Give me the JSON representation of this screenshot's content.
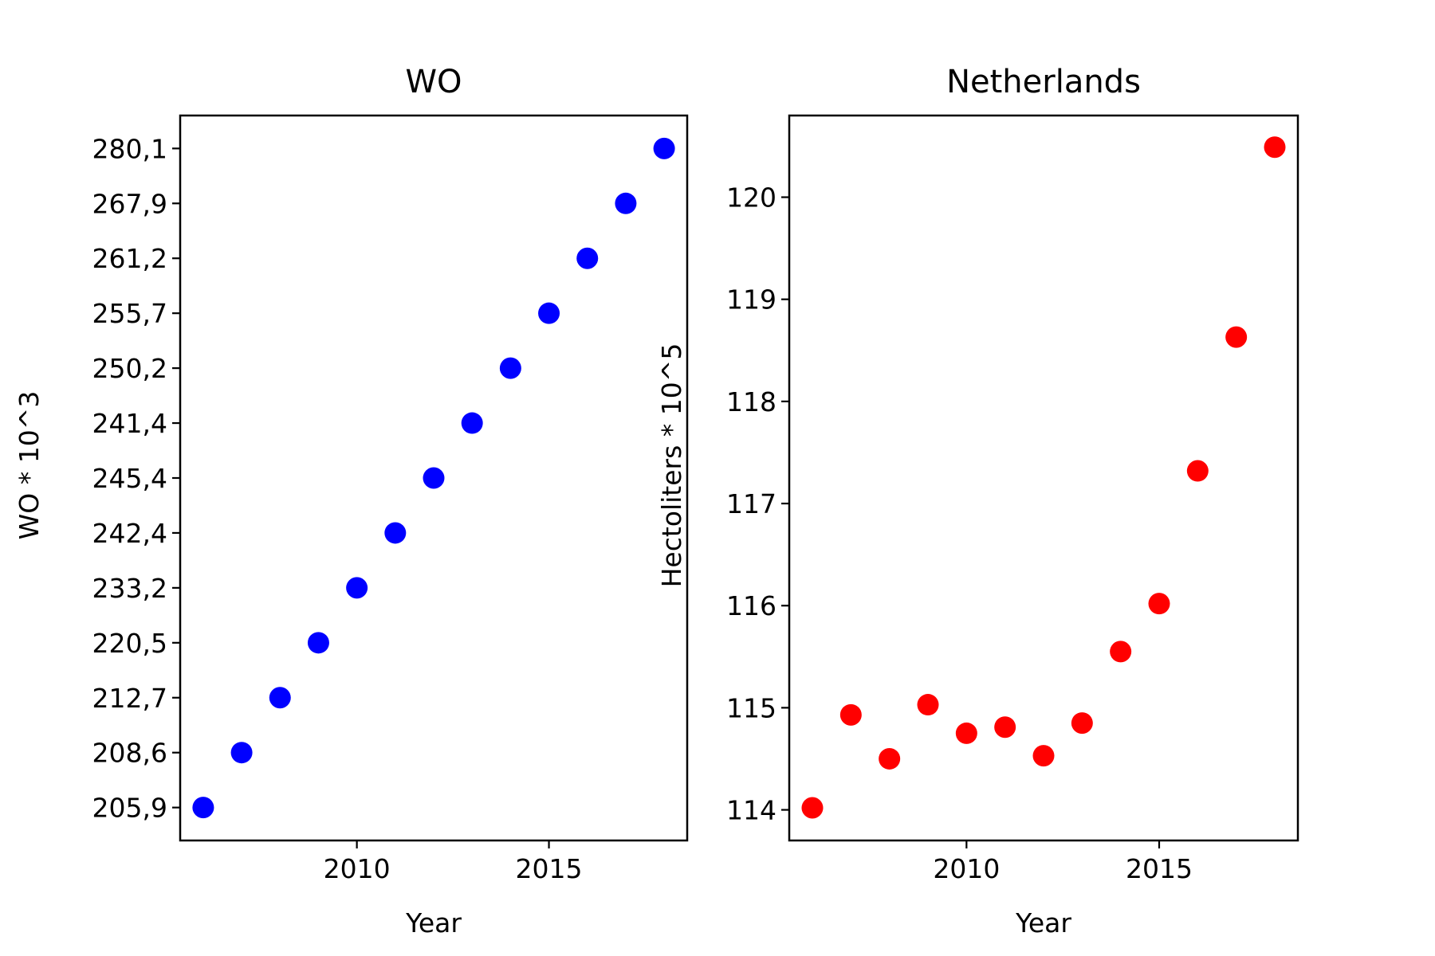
{
  "chart_data": [
    {
      "type": "scatter",
      "title": "WO",
      "xlabel": "Year",
      "ylabel": "WO * 10^3",
      "x_ticks": [
        2010,
        2015
      ],
      "xlim": [
        2005.4,
        2018.6
      ],
      "y_axis": "categorical",
      "y_categories": [
        "205,9",
        "208,6",
        "212,7",
        "220,5",
        "233,2",
        "242,4",
        "245,4",
        "241,4",
        "250,2",
        "255,7",
        "261,2",
        "267,9",
        "280,1"
      ],
      "grid": false,
      "marker_color": "#0000ff",
      "series": [
        {
          "x": [
            2006,
            2007,
            2008,
            2009,
            2010,
            2011,
            2012,
            2013,
            2014,
            2015,
            2016,
            2017,
            2018
          ],
          "y": [
            "205,9",
            "208,6",
            "212,7",
            "220,5",
            "233,2",
            "242,4",
            "245,4",
            "241,4",
            "250,2",
            "255,7",
            "261,2",
            "267,9",
            "280,1"
          ]
        }
      ]
    },
    {
      "type": "scatter",
      "title": "Netherlands",
      "xlabel": "Year",
      "ylabel": "Hectoliters * 10^5",
      "x_ticks": [
        2010,
        2015
      ],
      "xlim": [
        2005.4,
        2018.6
      ],
      "y_ticks": [
        114,
        115,
        116,
        117,
        118,
        119,
        120
      ],
      "ylim": [
        113.7,
        120.8
      ],
      "grid": false,
      "marker_color": "#ff0000",
      "series": [
        {
          "x": [
            2006,
            2007,
            2008,
            2009,
            2010,
            2011,
            2012,
            2013,
            2014,
            2015,
            2016,
            2017,
            2018
          ],
          "y": [
            114.02,
            114.93,
            114.5,
            115.03,
            114.75,
            114.81,
            114.53,
            114.85,
            115.55,
            116.02,
            117.32,
            118.63,
            120.49
          ]
        }
      ]
    }
  ]
}
